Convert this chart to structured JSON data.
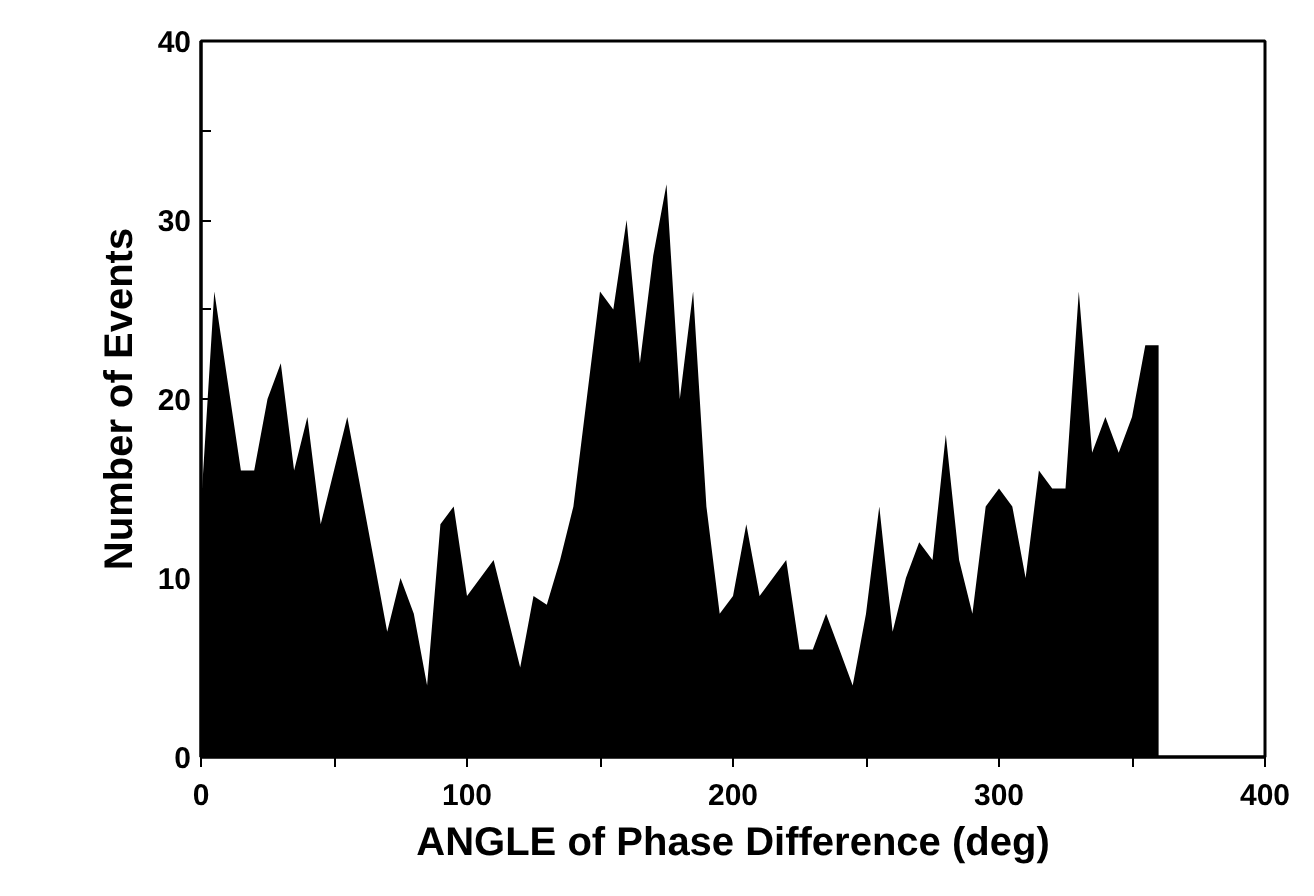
{
  "chart_data": {
    "type": "area",
    "xlabel": "ANGLE of Phase Difference (deg)",
    "ylabel": "Number of Events",
    "x": [
      0,
      5,
      10,
      15,
      20,
      25,
      30,
      35,
      40,
      45,
      50,
      55,
      60,
      65,
      70,
      75,
      80,
      85,
      90,
      95,
      100,
      105,
      110,
      115,
      120,
      125,
      130,
      135,
      140,
      145,
      150,
      155,
      160,
      165,
      170,
      175,
      180,
      185,
      190,
      195,
      200,
      205,
      210,
      215,
      220,
      225,
      230,
      235,
      240,
      245,
      250,
      255,
      260,
      265,
      270,
      275,
      280,
      285,
      290,
      295,
      300,
      305,
      310,
      315,
      320,
      325,
      330,
      335,
      340,
      345,
      350,
      355,
      360
    ],
    "series": [
      {
        "color": "#000000",
        "values": [
          14,
          26,
          21,
          16,
          16,
          20,
          22,
          16,
          19,
          13,
          16,
          19,
          15,
          11,
          7,
          10,
          8,
          4,
          13,
          14,
          9,
          10,
          11,
          8,
          5,
          9,
          8.5,
          11,
          14,
          20,
          26,
          25,
          30,
          22,
          28,
          32,
          20,
          26,
          14,
          8,
          9,
          13,
          9,
          10,
          11,
          6,
          6,
          8,
          6,
          4,
          8,
          14,
          7,
          10,
          12,
          11,
          18,
          11,
          8,
          14,
          15,
          14,
          10,
          16,
          15,
          15,
          26,
          17,
          19,
          17,
          19,
          23,
          23
        ]
      }
    ],
    "xlim": [
      0,
      400
    ],
    "ylim": [
      0,
      40
    ],
    "xticks": [
      0,
      {
        "value": 50,
        "label": null
      },
      100,
      {
        "value": 150,
        "label": null
      },
      200,
      {
        "value": 250,
        "label": null
      },
      300,
      {
        "value": 350,
        "label": null
      },
      400
    ],
    "yticks": [
      0,
      {
        "value": 5,
        "label": null
      },
      10,
      {
        "value": 15,
        "label": null
      },
      20,
      {
        "value": 25,
        "label": null
      },
      30,
      {
        "value": 35,
        "label": null
      },
      40
    ],
    "grid": false
  }
}
